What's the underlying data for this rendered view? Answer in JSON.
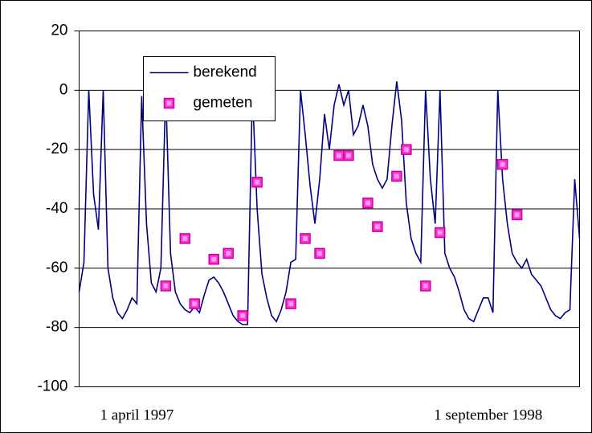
{
  "chart_data": {
    "type": "line",
    "categories": [
      null,
      null,
      null,
      null,
      null,
      null,
      null,
      null,
      null,
      null,
      null,
      null,
      "1 april 1997",
      null,
      null,
      null,
      null,
      null,
      null,
      null,
      null,
      null,
      null,
      null,
      null,
      null,
      null,
      null,
      null,
      null,
      null,
      null,
      null,
      null,
      null,
      null,
      null,
      null,
      null,
      null,
      null,
      null,
      null,
      null,
      null,
      null,
      null,
      null,
      null,
      null,
      null,
      null,
      null,
      null,
      null,
      null,
      null,
      null,
      null,
      null,
      null,
      null,
      null,
      null,
      null,
      null,
      null,
      null,
      null,
      null,
      null,
      null,
      null,
      null,
      null,
      null,
      null,
      null,
      null,
      null,
      null,
      null,
      null,
      null,
      null,
      "1 september 1998",
      null,
      null,
      null,
      null,
      null,
      null,
      null,
      null,
      null,
      null,
      null,
      null,
      null,
      null,
      null,
      null,
      null,
      null,
      null
    ],
    "series": [
      {
        "name": "berekend",
        "type": "line",
        "color": "#000080",
        "values": [
          -68,
          -58,
          0,
          -35,
          -47,
          0,
          -60,
          -70,
          -75,
          -77,
          -74,
          -70,
          -72,
          -2,
          -45,
          -65,
          -68,
          -60,
          0,
          -55,
          -68,
          -72,
          -74,
          -75,
          -73,
          -75,
          -69,
          -64,
          -63,
          -65,
          -68,
          -72,
          -76,
          -78,
          -79,
          -79,
          0,
          -40,
          -62,
          -70,
          -76,
          -78,
          -74,
          -68,
          -58,
          -57,
          0,
          -15,
          -32,
          -45,
          -30,
          -8,
          -20,
          -5,
          2,
          -5,
          0,
          -15,
          -12,
          -5,
          -12,
          -25,
          -30,
          -33,
          -30,
          -12,
          3,
          -10,
          -38,
          -50,
          -55,
          -58,
          0,
          -30,
          -45,
          0,
          -55,
          -60,
          -63,
          -68,
          -74,
          -77,
          -78,
          -74,
          -70,
          -70,
          -75,
          0,
          -30,
          -45,
          -55,
          -58,
          -60,
          -57,
          -62,
          -64,
          -66,
          -70,
          -74,
          -76,
          -77,
          -75,
          -74,
          -30,
          -50
        ]
      },
      {
        "name": "gemeten",
        "type": "scatter",
        "color": "#ff33cc",
        "values": [
          null,
          null,
          null,
          null,
          null,
          null,
          null,
          null,
          null,
          null,
          null,
          null,
          null,
          null,
          null,
          null,
          null,
          null,
          -66,
          null,
          null,
          null,
          -50,
          null,
          -72,
          null,
          null,
          null,
          -57,
          null,
          null,
          -55,
          null,
          null,
          -76,
          null,
          null,
          -31,
          null,
          null,
          null,
          null,
          null,
          null,
          -72,
          null,
          null,
          -50,
          null,
          null,
          -55,
          null,
          null,
          null,
          -22,
          null,
          -22,
          null,
          null,
          null,
          -38,
          null,
          -46,
          null,
          null,
          null,
          -29,
          null,
          -20,
          null,
          null,
          null,
          -66,
          null,
          null,
          -48,
          null,
          null,
          null,
          null,
          null,
          null,
          null,
          null,
          null,
          null,
          null,
          null,
          -25,
          null,
          null,
          -42,
          null,
          null,
          null,
          null,
          null,
          null,
          null,
          null,
          null,
          null,
          null,
          null,
          null
        ]
      }
    ],
    "ylim": [
      -100,
      20
    ],
    "yticks": [
      -100,
      -80,
      -60,
      -40,
      -20,
      0,
      20
    ],
    "grid": true,
    "legend": "top-left"
  }
}
